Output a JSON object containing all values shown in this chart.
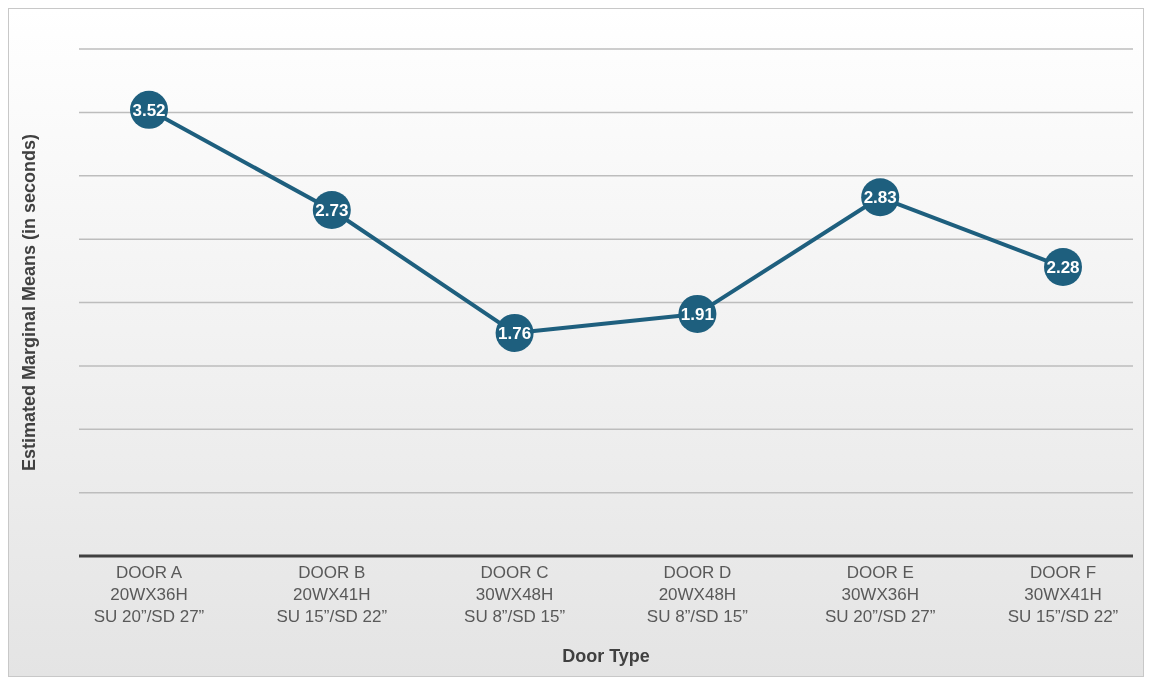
{
  "chart_data": {
    "type": "line",
    "xlabel": "Door Type",
    "ylabel": "Estimated Marginal Means (in seconds)",
    "categories": [
      "DOOR A\n20WX36H\nSU 20”/SD 27”",
      "DOOR B\n20WX41H\nSU 15”/SD 22”",
      "DOOR C\n30WX48H\nSU 8”/SD 15”",
      "DOOR D\n20WX48H\nSU 8”/SD 15”",
      "DOOR E\n30WX36H\nSU 20”/SD 27”",
      "DOOR F\n30WX41H\nSU 15”/SD 22”"
    ],
    "series": [
      {
        "color": "#1e5f7e",
        "values": [
          3.52,
          2.73,
          1.76,
          1.91,
          2.83,
          2.28
        ]
      }
    ],
    "ylim": [
      0,
      4
    ],
    "yticks": [
      {
        "value": 0,
        "label": null
      },
      {
        "value": 0.5,
        "label": null
      },
      {
        "value": 1,
        "label": null
      },
      {
        "value": 1.5,
        "label": null
      },
      {
        "value": 2,
        "label": null
      },
      {
        "value": 2.5,
        "label": null
      },
      {
        "value": 3,
        "label": null
      },
      {
        "value": 3.5,
        "label": null
      },
      {
        "value": 4,
        "label": null
      }
    ],
    "tick_labels": "x",
    "grid": "y",
    "marker": "circle",
    "line_style": "solid",
    "data_labels": true,
    "legend": false
  }
}
